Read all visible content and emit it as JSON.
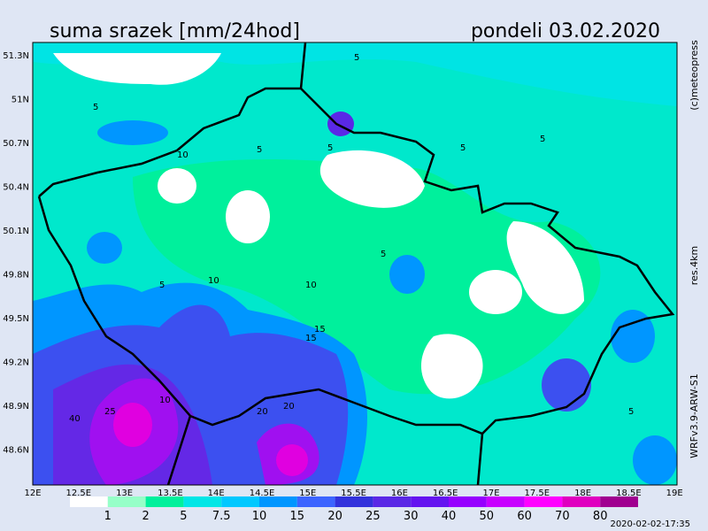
{
  "header": {
    "title": "suma srazek [mm/24hod]",
    "date": "pondeli 03.02.2020"
  },
  "map": {
    "lat_labels": [
      "51.3N",
      "51N",
      "50.7N",
      "50.4N",
      "50.1N",
      "49.8N",
      "49.5N",
      "49.2N",
      "48.9N",
      "48.6N"
    ],
    "lon_labels": [
      "12E",
      "12.5E",
      "13E",
      "13.5E",
      "14E",
      "14.5E",
      "15E",
      "15.5E",
      "16E",
      "16.5E",
      "17E",
      "17.5E",
      "18E",
      "18.5E",
      "19E"
    ],
    "contour_labels": [
      "5",
      "5",
      "5",
      "5",
      "5",
      "5",
      "5",
      "5",
      "10",
      "10",
      "10",
      "15",
      "15",
      "20",
      "20",
      "25",
      "40",
      "10",
      "5"
    ]
  },
  "legend": {
    "labels": [
      "1",
      "2",
      "5",
      "7.5",
      "10",
      "15",
      "20",
      "25",
      "30",
      "40",
      "50",
      "60",
      "70",
      "80"
    ]
  },
  "side": {
    "copyright": "(c)meteopress",
    "resolution": "res.4km",
    "model": "WRFv3.9-ARW-S1"
  },
  "footer": {
    "timestamp": "2020-02-02-17:35"
  }
}
